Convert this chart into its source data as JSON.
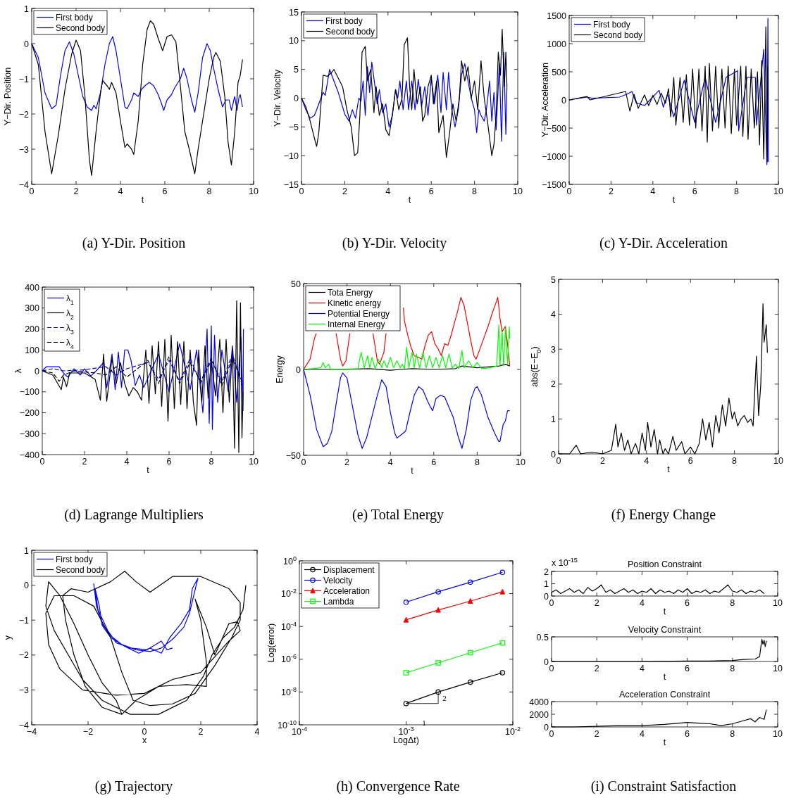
{
  "chart_data": [
    {
      "type": "line",
      "title": "(a)  Y-Dir. Position",
      "xlabel": "t",
      "ylabel": "Y−Dir. Position",
      "xlim": [
        0,
        10
      ],
      "ylim": [
        -4,
        1
      ],
      "xticks": [
        0,
        2,
        4,
        6,
        8,
        10
      ],
      "yticks": [
        -4,
        -3,
        -2,
        -1,
        0,
        1
      ],
      "legend": "top left",
      "series": [
        {
          "name": "First body",
          "color": "#0000ff",
          "x": [
            0,
            0.3,
            0.6,
            0.9,
            1.1,
            1.3,
            1.5,
            1.7,
            1.9,
            2.1,
            2.3,
            2.5,
            2.7,
            2.8,
            2.9,
            3.1,
            3.3,
            3.5,
            3.65,
            3.8,
            4.0,
            4.2,
            4.3,
            4.5,
            4.6,
            4.8,
            4.95,
            5.1,
            5.3,
            5.5,
            5.7,
            5.85,
            5.95,
            6.1,
            6.3,
            6.45,
            6.6,
            6.7,
            6.85,
            7.0,
            7.2,
            7.35,
            7.5,
            7.7,
            7.9,
            8.05,
            8.2,
            8.4,
            8.6,
            8.75,
            8.9,
            9.0,
            9.15,
            9.25,
            9.35,
            9.4,
            9.5
          ],
          "values": [
            0,
            -0.4,
            -1.4,
            -1.85,
            -1.75,
            -0.9,
            -0.2,
            0.05,
            -0.3,
            -0.9,
            -1.5,
            -1.8,
            -1.9,
            -1.75,
            -1.85,
            -1.4,
            -0.6,
            0,
            0.2,
            -0.2,
            -1,
            -1.8,
            -1.85,
            -1.6,
            -1.4,
            -1.5,
            -1.3,
            -1.2,
            -1.1,
            -1.2,
            -1.45,
            -1.7,
            -1.9,
            -1.6,
            -1.45,
            -1.25,
            -1.1,
            -1,
            -0.7,
            -1,
            -1.6,
            -1.95,
            -1.4,
            -0.4,
            0,
            -0.2,
            -0.7,
            -1.3,
            -1.8,
            -1.6,
            -1.6,
            -1.9,
            -1.5,
            -1.9,
            -1.5,
            -1.45,
            -1.8
          ]
        },
        {
          "name": "Second body",
          "color": "#000000",
          "x": [
            0,
            0.3,
            0.6,
            0.9,
            1.2,
            1.5,
            1.8,
            2.0,
            2.2,
            2.4,
            2.6,
            2.7,
            2.9,
            3.1,
            3.2,
            3.4,
            3.5,
            3.6,
            3.8,
            4.0,
            4.2,
            4.3,
            4.5,
            4.6,
            4.8,
            5.0,
            5.2,
            5.35,
            5.5,
            5.7,
            5.9,
            6.1,
            6.3,
            6.5,
            6.7,
            6.9,
            7.1,
            7.35,
            7.5,
            7.8,
            8.0,
            8.2,
            8.3,
            8.5,
            8.7,
            8.85,
            9.0,
            9.15,
            9.3,
            9.4,
            9.5
          ],
          "values": [
            0,
            -0.6,
            -2.5,
            -3.7,
            -2.6,
            -1.3,
            -0.3,
            0.1,
            -0.2,
            -1.5,
            -3.3,
            -3.75,
            -2.5,
            -1.4,
            -1.05,
            -1.2,
            -1.3,
            -1.1,
            -1.4,
            -2.2,
            -2.95,
            -2.85,
            -3,
            -3.15,
            -2.2,
            -0.6,
            0.4,
            0.65,
            0.55,
            0.15,
            -0.2,
            0.2,
            0.25,
            0.05,
            -1.2,
            -2.5,
            -3,
            -3.7,
            -3,
            -1.8,
            -1,
            -0.4,
            -0.25,
            -0.5,
            -1.5,
            -2.8,
            -3.45,
            -2.5,
            -1.1,
            -0.9,
            -0.45
          ]
        }
      ]
    },
    {
      "type": "line",
      "title": "(b)  Y-Dir. Velocity",
      "xlabel": "t",
      "ylabel": "Y−Dir. Velocity",
      "xlim": [
        0,
        10
      ],
      "ylim": [
        -15,
        15
      ],
      "xticks": [
        0,
        2,
        4,
        6,
        8,
        10
      ],
      "yticks": [
        -15,
        -10,
        -5,
        0,
        5,
        10,
        15
      ],
      "legend": "top left",
      "series": [
        {
          "name": "First body",
          "color": "#0000ff",
          "x": [
            0,
            0.2,
            0.4,
            0.6,
            0.8,
            1.0,
            1.1,
            1.3,
            1.5,
            1.7,
            1.9,
            2.0,
            2.2,
            2.35,
            2.5,
            2.65,
            2.75,
            2.85,
            2.95,
            3.05,
            3.15,
            3.25,
            3.4,
            3.5,
            3.6,
            3.75,
            3.9,
            4.05,
            4.2,
            4.35,
            4.45,
            4.55,
            4.7,
            4.85,
            4.95,
            5.1,
            5.25,
            5.4,
            5.55,
            5.7,
            5.85,
            6.0,
            6.15,
            6.3,
            6.45,
            6.55,
            6.7,
            6.8,
            6.95,
            7.1,
            7.25,
            7.4,
            7.55,
            7.7,
            7.85,
            8.0,
            8.1,
            8.2,
            8.3,
            8.45,
            8.55,
            8.7,
            8.8,
            8.9,
            9.0,
            9.15,
            9.25,
            9.35,
            9.45,
            9.5
          ],
          "values": [
            0,
            -2,
            -3.5,
            -3,
            -1,
            1,
            0.5,
            5,
            3,
            1,
            -1.5,
            -2.8,
            -4,
            -2,
            -3.5,
            0,
            -0.5,
            3,
            -3,
            5.5,
            1,
            6.3,
            2,
            -1,
            1.5,
            -2.5,
            -1,
            -5,
            -3,
            1.5,
            0,
            3,
            -2,
            3,
            -2,
            3,
            -2,
            3.3,
            -1.5,
            2,
            -3,
            3.5,
            -1,
            4,
            -2.5,
            4.5,
            -2,
            4.5,
            -2,
            -5,
            -2,
            4,
            6,
            3,
            0,
            -2,
            -6,
            -2,
            -3,
            -4,
            -2,
            3,
            -4,
            1,
            -5.5,
            6,
            -7.5,
            8,
            -6.3,
            2
          ]
        },
        {
          "name": "Second body",
          "color": "#000000",
          "x": [
            0,
            0.2,
            0.4,
            0.6,
            0.7,
            0.8,
            0.9,
            1.0,
            1.2,
            1.4,
            1.5,
            1.7,
            1.9,
            2.1,
            2.3,
            2.45,
            2.6,
            2.7,
            2.8,
            2.95,
            3.05,
            3.2,
            3.35,
            3.45,
            3.6,
            3.75,
            3.9,
            4.05,
            4.2,
            4.35,
            4.5,
            4.65,
            4.75,
            4.9,
            5.0,
            5.1,
            5.2,
            5.35,
            5.5,
            5.6,
            5.7,
            5.85,
            6.0,
            6.1,
            6.25,
            6.35,
            6.55,
            6.7,
            6.85,
            7.0,
            7.15,
            7.3,
            7.4,
            7.55,
            7.7,
            7.85,
            8.0,
            8.15,
            8.3,
            8.45,
            8.6,
            8.7,
            8.8,
            8.9,
            9.0,
            9.1,
            9.2,
            9.28,
            9.38,
            9.45,
            9.5
          ],
          "values": [
            0,
            -1.5,
            -4,
            -7,
            -8.4,
            -6,
            -1,
            4,
            3.8,
            4.5,
            5,
            3.5,
            2,
            -2,
            -5,
            -10,
            -9.5,
            -3,
            8,
            9,
            3,
            5,
            -2.5,
            2,
            -3,
            -1,
            -5.5,
            -6.5,
            -3,
            1.5,
            -2,
            0,
            9.3,
            10.5,
            2,
            -2,
            5,
            -1,
            2,
            -4,
            -3,
            2,
            4,
            -1,
            3,
            -6,
            -3,
            -10.3,
            -6,
            -1,
            -4,
            0,
            6.5,
            3,
            5.5,
            0,
            3,
            -2,
            6.5,
            0,
            -4,
            -7,
            -10,
            -8,
            -3,
            8,
            4,
            12,
            2,
            8,
            2
          ]
        }
      ]
    },
    {
      "type": "line",
      "title": "(c)  Y-Dir. Acceleration",
      "xlabel": "t",
      "ylabel": "Y−Dir. Acceleration",
      "xlim": [
        0,
        10
      ],
      "ylim": [
        -1500,
        1500
      ],
      "xticks": [
        0,
        2,
        4,
        6,
        8,
        10
      ],
      "yticks": [
        -1500,
        -1000,
        -500,
        0,
        500,
        1000,
        1500
      ],
      "legend": "top left",
      "series": [
        {
          "name": "First body",
          "color": "#0000ff",
          "x": [
            0,
            0.85,
            1.1,
            2.4,
            2.75,
            3.0,
            3.2,
            3.6,
            4.3,
            4.5,
            4.7,
            5.0,
            5.5,
            6.0,
            6.5,
            7.0,
            7.5,
            8.05,
            8.1,
            8.5,
            8.9,
            8.95,
            9.3,
            9.45,
            9.5,
            9.53
          ],
          "values": [
            0,
            50,
            30,
            50,
            100,
            150,
            -50,
            -100,
            170,
            -130,
            100,
            -300,
            350,
            -400,
            400,
            -400,
            400,
            520,
            -550,
            400,
            400,
            -450,
            900,
            -1150,
            1450,
            -1100
          ]
        },
        {
          "name": "Second body",
          "color": "#000000",
          "x": [
            0,
            0.85,
            1.0,
            2.7,
            2.9,
            3.1,
            3.3,
            3.6,
            3.8,
            4.0,
            4.2,
            4.4,
            4.6,
            4.75,
            4.85,
            5.0,
            5.1,
            5.3,
            5.45,
            5.6,
            5.75,
            5.9,
            6.05,
            6.2,
            6.35,
            6.5,
            6.6,
            6.7,
            6.85,
            7.0,
            7.15,
            7.3,
            7.45,
            7.6,
            7.75,
            7.9,
            8.0,
            8.2,
            8.3,
            8.45,
            8.55,
            8.7,
            8.85,
            9.0,
            9.1,
            9.2,
            9.3,
            9.4,
            9.47,
            9.5
          ],
          "values": [
            0,
            60,
            0,
            150,
            -200,
            100,
            -150,
            90,
            -100,
            80,
            -80,
            120,
            -60,
            200,
            -300,
            400,
            -450,
            400,
            -400,
            450,
            -450,
            550,
            -500,
            550,
            -550,
            600,
            -750,
            650,
            -550,
            600,
            -500,
            550,
            -500,
            600,
            -600,
            550,
            -450,
            600,
            -650,
            600,
            -700,
            550,
            -500,
            500,
            -800,
            700,
            -1050,
            1300,
            -1100,
            600
          ]
        }
      ]
    },
    {
      "type": "line",
      "title": "(d)  Lagrange Multipliers",
      "xlabel": "t",
      "ylabel": "λ",
      "xlim": [
        0,
        10
      ],
      "ylim": [
        -400,
        400
      ],
      "xticks": [
        0,
        2,
        4,
        6,
        8,
        10
      ],
      "yticks": [
        -400,
        -300,
        -200,
        -100,
        0,
        100,
        200,
        300,
        400
      ],
      "legend": "top left",
      "series": [
        {
          "name": "λ$_{1}$",
          "color": "#0000ff",
          "line_style": "solid",
          "x": [
            0,
            0.2,
            0.8,
            1.0,
            1.2,
            1.5,
            1.8,
            2.0,
            2.3,
            2.6,
            2.9,
            3.05,
            3.3,
            3.45,
            3.6,
            3.75,
            3.9,
            4.05,
            4.2,
            4.4,
            4.6,
            4.8,
            5.5,
            6.0,
            6.5,
            7.0,
            7.3,
            7.6,
            7.8,
            7.9,
            8.0,
            8.05,
            8.15,
            8.3,
            8.5,
            8.8,
            9.0,
            9.2,
            9.4,
            9.5,
            9.52
          ],
          "values": [
            0,
            20,
            20,
            -10,
            -30,
            10,
            -20,
            10,
            -25,
            5,
            40,
            -80,
            80,
            -90,
            90,
            -80,
            100,
            100,
            50,
            -70,
            -20,
            -80,
            80,
            -100,
            130,
            -90,
            100,
            -200,
            200,
            -250,
            215,
            -280,
            170,
            -150,
            100,
            -100,
            120,
            -150,
            160,
            -190,
            200
          ]
        },
        {
          "name": "λ$_{2}$",
          "color": "#000000",
          "line_style": "solid",
          "x": [
            0,
            0.5,
            0.9,
            1.0,
            1.15,
            1.3,
            2.0,
            2.5,
            2.75,
            2.9,
            3.05,
            3.3,
            3.5,
            3.7,
            3.9,
            4.1,
            4.3,
            4.5,
            4.7,
            4.9,
            5.05,
            5.2,
            5.35,
            5.5,
            5.65,
            5.8,
            5.95,
            6.1,
            6.25,
            6.4,
            6.55,
            6.7,
            6.85,
            7.0,
            7.15,
            7.3,
            7.4,
            7.55,
            7.7,
            7.85,
            8.0,
            8.2,
            8.4,
            8.55,
            8.7,
            8.85,
            9.0,
            9.1,
            9.2,
            9.3,
            9.38,
            9.45,
            9.5
          ],
          "values": [
            0,
            -20,
            -90,
            -30,
            -75,
            -10,
            -10,
            -40,
            -140,
            80,
            -145,
            60,
            -60,
            40,
            -60,
            -120,
            -80,
            -100,
            -140,
            100,
            -155,
            120,
            -110,
            140,
            -170,
            150,
            -240,
            170,
            -180,
            140,
            -160,
            140,
            -180,
            100,
            -150,
            -260,
            100,
            -150,
            120,
            -130,
            50,
            -120,
            150,
            -200,
            150,
            -150,
            100,
            -370,
            335,
            -390,
            325,
            -320,
            -100
          ]
        },
        {
          "name": "λ$_{3}$",
          "color": "#0000ff",
          "line_style": "dashed",
          "x": [
            0,
            0.5,
            1,
            2,
            3,
            3.5,
            4,
            5,
            5.5,
            6,
            6.5,
            7,
            7.5,
            8,
            8.5,
            9,
            9.5
          ],
          "values": [
            0,
            10,
            0,
            5,
            20,
            -20,
            10,
            40,
            -40,
            50,
            -50,
            60,
            -60,
            50,
            -50,
            80,
            -80
          ]
        },
        {
          "name": "λ$_{4}$",
          "color": "#000000",
          "line_style": "dashed",
          "x": [
            0,
            0.5,
            0.8,
            1.0,
            1.5,
            2.5,
            3,
            3.5,
            4,
            5,
            5.5,
            6,
            6.5,
            7,
            7.5,
            8,
            8.5,
            9,
            9.5
          ],
          "values": [
            0,
            -10,
            -50,
            -20,
            0,
            -10,
            -20,
            20,
            -30,
            50,
            -60,
            70,
            -60,
            40,
            -50,
            60,
            -70,
            60,
            -60
          ]
        }
      ]
    },
    {
      "type": "line",
      "title": "(e)  Total Energy",
      "xlabel": "t",
      "ylabel": "Energy",
      "xlim": [
        0,
        10
      ],
      "ylim": [
        -50,
        50
      ],
      "xticks": [
        0,
        2,
        4,
        6,
        8,
        10
      ],
      "yticks": [
        -50,
        0,
        50
      ],
      "legend": "top left",
      "series": [
        {
          "name": "Tota Energy",
          "color": "#000000",
          "x": [
            0,
            1,
            2,
            3,
            4,
            4.5,
            5,
            6,
            7,
            7.3,
            8,
            9,
            9.3,
            9.5
          ],
          "values": [
            0,
            0,
            0,
            0.5,
            -0.5,
            0,
            0.5,
            0,
            0.5,
            2,
            1,
            2,
            3,
            2
          ]
        },
        {
          "name": "Kinetic energy",
          "color": "#ff0000",
          "x": [
            0,
            0.3,
            0.5,
            0.58,
            0.7,
            1.5,
            1.7,
            1.8,
            1.95,
            2.1,
            2.13,
            2.3,
            3.2,
            3.25,
            3.4,
            3.5,
            3.7,
            3.8,
            3.9,
            4.6,
            4.65,
            4.8,
            4.95,
            5.1,
            5.3,
            5.45,
            5.6,
            5.75,
            5.9,
            6.05,
            6.2,
            6.35,
            6.5,
            6.65,
            6.8,
            6.95,
            7.1,
            7.25,
            7.4,
            7.55,
            7.7,
            7.85,
            7.95,
            8.1,
            8.3,
            8.5,
            8.7,
            8.9,
            8.95,
            9.05,
            9.15,
            9.3,
            9.4,
            9.5
          ],
          "values": [
            0,
            6,
            18,
            21,
            null,
            21,
            6,
            2,
            5,
            18,
            21,
            null,
            21,
            17,
            5,
            3,
            10,
            21,
            null,
            36,
            28,
            20,
            13,
            8,
            7,
            6,
            14,
            20,
            22,
            15,
            12,
            8,
            15,
            14,
            20,
            27,
            34,
            42,
            37,
            27,
            17,
            8,
            6,
            11,
            18,
            25,
            33,
            40,
            42,
            30,
            22,
            25,
            15,
            2
          ]
        },
        {
          "name": "Potential Energy",
          "color": "#0000ff",
          "x": [
            0,
            0.3,
            0.6,
            0.9,
            1.1,
            1.3,
            1.5,
            1.7,
            1.8,
            2.0,
            2.2,
            2.5,
            2.7,
            2.9,
            3.1,
            3.4,
            3.6,
            3.8,
            4.0,
            4.2,
            4.3,
            4.5,
            4.7,
            4.9,
            5.1,
            5.3,
            5.5,
            5.7,
            5.85,
            5.95,
            6.1,
            6.3,
            6.5,
            6.7,
            6.9,
            7.1,
            7.3,
            7.5,
            7.7,
            7.9,
            8.0,
            8.2,
            8.5,
            8.8,
            9.0,
            9.05,
            9.2,
            9.3,
            9.4,
            9.5
          ],
          "values": [
            0,
            -15,
            -35,
            -45,
            -43,
            -36,
            -20,
            -5,
            -2,
            -5,
            -18,
            -38,
            -46,
            -40,
            -30,
            -15,
            -6,
            -10,
            -25,
            -37,
            -40,
            -38,
            -36,
            -25,
            -15,
            -10,
            -12,
            -18,
            -22,
            -24,
            -17,
            -15,
            -16,
            -22,
            -28,
            -38,
            -46,
            -35,
            -18,
            -11,
            -10,
            -15,
            -28,
            -37,
            -42,
            -42,
            -32,
            -30,
            -24,
            -24
          ]
        },
        {
          "name": "Internal Energy",
          "color": "#00ff00",
          "x": [
            0,
            0.8,
            0.9,
            1.0,
            1.15,
            1.25,
            2.5,
            2.65,
            2.8,
            2.95,
            3.05,
            3.15,
            3.3,
            3.45,
            3.6,
            3.7,
            3.85,
            4.0,
            4.15,
            4.3,
            4.45,
            4.55,
            4.65,
            4.75,
            4.85,
            5.0,
            5.1,
            5.2,
            5.35,
            5.5,
            5.65,
            5.8,
            5.95,
            6.1,
            6.25,
            6.4,
            6.55,
            6.7,
            6.85,
            7.0,
            7.15,
            7.3,
            7.4,
            7.6,
            7.8,
            8.0,
            8.2,
            8.6,
            8.9,
            9.0,
            9.05,
            9.15,
            9.22,
            9.3,
            9.4,
            9.48,
            9.5
          ],
          "values": [
            0,
            1,
            4,
            1,
            3,
            0,
            0.5,
            10,
            1,
            8,
            1,
            7,
            0.5,
            6,
            1,
            5,
            1,
            7,
            1,
            5,
            1,
            3,
            0.5,
            13,
            1,
            10,
            1,
            9,
            1,
            10,
            1,
            8,
            1,
            7,
            1,
            8,
            1,
            9,
            1,
            3,
            0.5,
            11,
            1,
            5,
            1,
            4,
            0.5,
            1,
            2,
            26,
            2,
            22,
            2,
            24,
            3,
            25,
            18
          ]
        }
      ]
    },
    {
      "type": "line",
      "title": "(f)  Energy Change",
      "xlabel": "t",
      "ylabel": "abs(E−E$_{0}$)",
      "xlim": [
        0,
        10
      ],
      "ylim": [
        0,
        5
      ],
      "xticks": [
        0,
        2,
        4,
        6,
        8,
        10
      ],
      "yticks": [
        0,
        1,
        2,
        3,
        4,
        5
      ],
      "series": [
        {
          "color": "#000000",
          "x": [
            0,
            0.5,
            0.8,
            1.0,
            1.5,
            2,
            2.4,
            2.6,
            2.7,
            2.85,
            3.0,
            3.15,
            3.3,
            3.5,
            3.65,
            3.8,
            3.95,
            4.05,
            4.2,
            4.35,
            4.5,
            4.6,
            4.75,
            4.85,
            5.0,
            5.2,
            5.35,
            5.6,
            5.75,
            6.0,
            6.2,
            6.4,
            6.55,
            6.7,
            6.85,
            7.0,
            7.15,
            7.3,
            7.45,
            7.6,
            7.75,
            7.9,
            8.0,
            8.15,
            8.3,
            8.45,
            8.6,
            8.75,
            8.85,
            9.0,
            9.1,
            9.2,
            9.3,
            9.35,
            9.45,
            9.5
          ],
          "values": [
            0,
            0,
            0.25,
            0,
            0.05,
            0,
            0.1,
            0.85,
            0.2,
            0.6,
            0.1,
            0.4,
            0,
            0.3,
            0,
            0.6,
            0.1,
            0.9,
            0.2,
            0.7,
            0,
            0.4,
            0,
            0.15,
            0,
            0.5,
            0.1,
            0.35,
            0,
            0.2,
            0,
            0.3,
            1.0,
            0.4,
            0.9,
            0.2,
            1.1,
            0.6,
            1.4,
            0.8,
            1.6,
            1.0,
            1.2,
            0.8,
            1.0,
            1.1,
            0.9,
            1.0,
            0.8,
            2.8,
            1.1,
            2.0,
            4.3,
            3.2,
            3.7,
            2.9
          ]
        }
      ]
    },
    {
      "type": "line",
      "title": "(g)  Trajectory",
      "xlabel": "x",
      "ylabel": "y",
      "xlim": [
        -4,
        4
      ],
      "ylim": [
        -4,
        1
      ],
      "xticks": [
        -4,
        -2,
        0,
        2,
        4
      ],
      "yticks": [
        -4,
        -3,
        -2,
        -1,
        0,
        1
      ],
      "legend": "top left",
      "series": [
        {
          "name": "First body",
          "color": "#0000ff",
          "x": [
            -1.8,
            -1.7,
            -1.5,
            -1.2,
            -0.8,
            -0.3,
            0.2,
            0.6,
            1.0,
            1.4,
            1.6,
            1.75,
            1.9,
            1.7,
            1.6,
            1.3,
            0.9,
            0.6,
            0.2,
            -0.2,
            -0.7,
            -1.2,
            -1.5,
            -1.6,
            -1.75,
            -1.65,
            -1.3,
            -1.0,
            -0.5,
            0.1,
            0.6,
            0.8,
            1.0
          ],
          "values": [
            0.05,
            -0.6,
            -1.1,
            -1.45,
            -1.7,
            -1.85,
            -1.9,
            -1.8,
            -1.55,
            -1.2,
            -0.8,
            -0.3,
            0.2,
            -0.1,
            -0.7,
            -1.1,
            -1.5,
            -1.95,
            -1.8,
            -1.95,
            -1.75,
            -1.5,
            -1.15,
            -0.6,
            -0.1,
            -0.7,
            -1.3,
            -1.65,
            -1.8,
            -1.85,
            -1.6,
            -1.85,
            -1.8
          ]
        },
        {
          "name": "Second body",
          "color": "#000000",
          "x": [
            3.6,
            3.5,
            3.2,
            2.8,
            2.4,
            2.1,
            1.5,
            0.5,
            -0.5,
            -1.5,
            -2.2,
            -2.7,
            -3.2,
            -3.5,
            -3.4,
            -3.0,
            -2.5,
            -2.0,
            -1.5,
            -1.0,
            -0.8,
            -0.3,
            0.5,
            1.5,
            2.2,
            2.2,
            2.0,
            1.8,
            2.2,
            2.5,
            3.0,
            3.3,
            3.4,
            3.0,
            2.0,
            1.0,
            0,
            -1,
            -2.2,
            -3.0,
            -3.4,
            -3.5,
            -3.2,
            -2.5,
            -1.8,
            -1.2,
            -0.8,
            -0.4,
            0.2,
            1.0,
            1.8,
            2.5,
            3.1,
            3.4,
            3.4,
            3.0,
            2.0,
            1.0,
            0.2,
            -0.3,
            -0.7,
            -1.2,
            -2.0,
            -2.6,
            -2.9,
            -2.8,
            -2.5,
            -2.1,
            -1.5,
            -0.8
          ],
          "values": [
            0,
            -0.7,
            -1.2,
            -1.5,
            -2.0,
            -2.6,
            -3.3,
            -3.7,
            -3.7,
            -3.3,
            -2.7,
            -2.0,
            -1.3,
            -0.6,
            0.1,
            -0.3,
            -1.1,
            -2.0,
            -2.8,
            -3.3,
            -3.7,
            -3.3,
            -2.9,
            -2.85,
            -2.9,
            -2.2,
            -1.0,
            -0.4,
            -1.2,
            -2.0,
            -1.1,
            -1.05,
            -1.3,
            -1.6,
            -2.5,
            -2.7,
            -3.1,
            -3.15,
            -3.0,
            -2.4,
            -1.7,
            -0.8,
            -0.3,
            -0.3,
            -0.6,
            -1.5,
            -2.5,
            -3.3,
            -3.45,
            -3.4,
            -3.1,
            -2.3,
            -1.5,
            -1.0,
            -0.5,
            -0.1,
            0.25,
            0.25,
            -0.2,
            0.1,
            0.4,
            0.1,
            -0.2,
            -0.1,
            -0.3,
            -1.0,
            -2.0,
            -2.9,
            -3.5,
            -3.7
          ]
        }
      ]
    },
    {
      "type": "line",
      "title": "(h)  Convergence Rate",
      "xlabel": "LogΔt)",
      "ylabel": "Log(error)",
      "log": "xy",
      "xlim": [
        0.0001,
        0.01
      ],
      "ylim": [
        1e-10,
        1
      ],
      "xticks": [
        {
          "value": 0.0001,
          "label": "10$^{-4}$"
        },
        {
          "value": 0.001,
          "label": "10$^{-3}$"
        },
        {
          "value": 0.01,
          "label": "10$^{-2}$"
        }
      ],
      "yticks": [
        {
          "value": 1e-10,
          "label": "10$^{-10}$"
        },
        {
          "value": 1e-08,
          "label": "10$^{-8}$"
        },
        {
          "value": 1e-06,
          "label": "10$^{-6}$"
        },
        {
          "value": 0.0001,
          "label": "10$^{-4}$"
        },
        {
          "value": 0.01,
          "label": "10$^{-2}$"
        },
        {
          "value": 1,
          "label": "10$^{0}$"
        }
      ],
      "legend": "top left",
      "annotations": [
        "1",
        {
          "text": "2",
          "x": 0.002,
          "y": 1e-08
        }
      ],
      "series": [
        {
          "name": "Displacement",
          "color": "#000000",
          "marker": "circle",
          "x": [
            0.001,
            0.002,
            0.004,
            0.008
          ],
          "values": [
            2e-09,
            1e-08,
            4e-08,
            1.5e-07
          ]
        },
        {
          "name": "Velocity",
          "color": "#0000ff",
          "marker": "circle",
          "x": [
            0.001,
            0.002,
            0.004,
            0.008
          ],
          "values": [
            0.003,
            0.013,
            0.05,
            0.2
          ]
        },
        {
          "name": "Acceleration",
          "color": "#ff0000",
          "marker": "triangle",
          "x": [
            0.001,
            0.002,
            0.004,
            0.008
          ],
          "values": [
            0.00025,
            0.001,
            0.0035,
            0.013
          ]
        },
        {
          "name": "Lambda",
          "color": "#00ff00",
          "marker": "square",
          "x": [
            0.001,
            0.002,
            0.004,
            0.008
          ],
          "values": [
            1.5e-07,
            6e-07,
            2.5e-06,
            1e-05
          ]
        }
      ]
    },
    {
      "type": "line",
      "title": "Position Constraint",
      "xlabel": "t",
      "xlim": [
        0,
        10
      ],
      "ylim": [
        0,
        2
      ],
      "xticks": [
        0,
        2,
        4,
        6,
        8,
        10
      ],
      "yticks": [
        0,
        1,
        2
      ],
      "annotations": [
        "x 10$^{-15}$"
      ],
      "series": [
        {
          "color": "#000000",
          "x": [
            0,
            0.2,
            0.4,
            0.6,
            0.8,
            1.0,
            1.2,
            1.4,
            1.6,
            1.8,
            2.0,
            2.2,
            2.4,
            2.6,
            2.8,
            3.0,
            3.2,
            3.4,
            3.6,
            3.8,
            4.0,
            4.2,
            4.4,
            4.6,
            4.8,
            5.0,
            5.2,
            5.4,
            5.6,
            5.8,
            6.0,
            6.2,
            6.4,
            6.6,
            6.8,
            7.0,
            7.2,
            7.4,
            7.6,
            7.8,
            8.0,
            8.2,
            8.4,
            8.6,
            8.8,
            9.0,
            9.2,
            9.4
          ],
          "values": [
            0.3,
            0.5,
            0.2,
            0.4,
            0.6,
            0.3,
            0.5,
            0.2,
            0.7,
            0.4,
            0.6,
            0.9,
            0.3,
            0.5,
            0.2,
            0.4,
            0.6,
            0.3,
            0.5,
            0.2,
            0.4,
            0.3,
            0.6,
            0.2,
            0.5,
            0.3,
            0.4,
            0.2,
            0.5,
            0.3,
            0.6,
            0.2,
            0.4,
            0.3,
            0.5,
            0.2,
            0.4,
            0.3,
            0.6,
            0.9,
            0.4,
            0.3,
            0.5,
            0.2,
            0.4,
            0.3,
            0.5,
            0.2
          ]
        }
      ]
    },
    {
      "type": "line",
      "title": "Velocity  Constraint",
      "xlabel": "t",
      "xlim": [
        0,
        10
      ],
      "ylim": [
        0,
        0.5
      ],
      "xticks": [
        0,
        2,
        4,
        6,
        8,
        10
      ],
      "yticks": [
        0,
        0.5
      ],
      "series": [
        {
          "color": "#000000",
          "x": [
            0,
            2,
            4,
            6,
            7,
            8,
            8.5,
            9,
            9.2,
            9.3,
            9.35,
            9.4,
            9.45,
            9.5
          ],
          "values": [
            0,
            0,
            0,
            0.01,
            0.01,
            0.02,
            0.04,
            0.05,
            0.1,
            0.45,
            0.35,
            0.43,
            0.3,
            0.42
          ]
        }
      ]
    },
    {
      "type": "line",
      "title": "Acceleration Constraint",
      "xlabel": "t",
      "xlim": [
        0,
        10
      ],
      "ylim": [
        0,
        4000
      ],
      "xticks": [
        0,
        2,
        4,
        6,
        8,
        10
      ],
      "yticks": [
        0,
        2000,
        4000
      ],
      "annotations": [
        "(i)  Constraint Satisfaction"
      ],
      "series": [
        {
          "color": "#000000",
          "x": [
            0,
            1,
            2,
            3,
            4,
            5,
            6,
            6.5,
            7,
            7.5,
            8,
            8.5,
            8.8,
            9.0,
            9.2,
            9.4,
            9.5
          ],
          "values": [
            0,
            0,
            100,
            200,
            200,
            400,
            700,
            600,
            500,
            200,
            500,
            1000,
            1300,
            800,
            1500,
            1200,
            2700
          ]
        }
      ]
    }
  ]
}
